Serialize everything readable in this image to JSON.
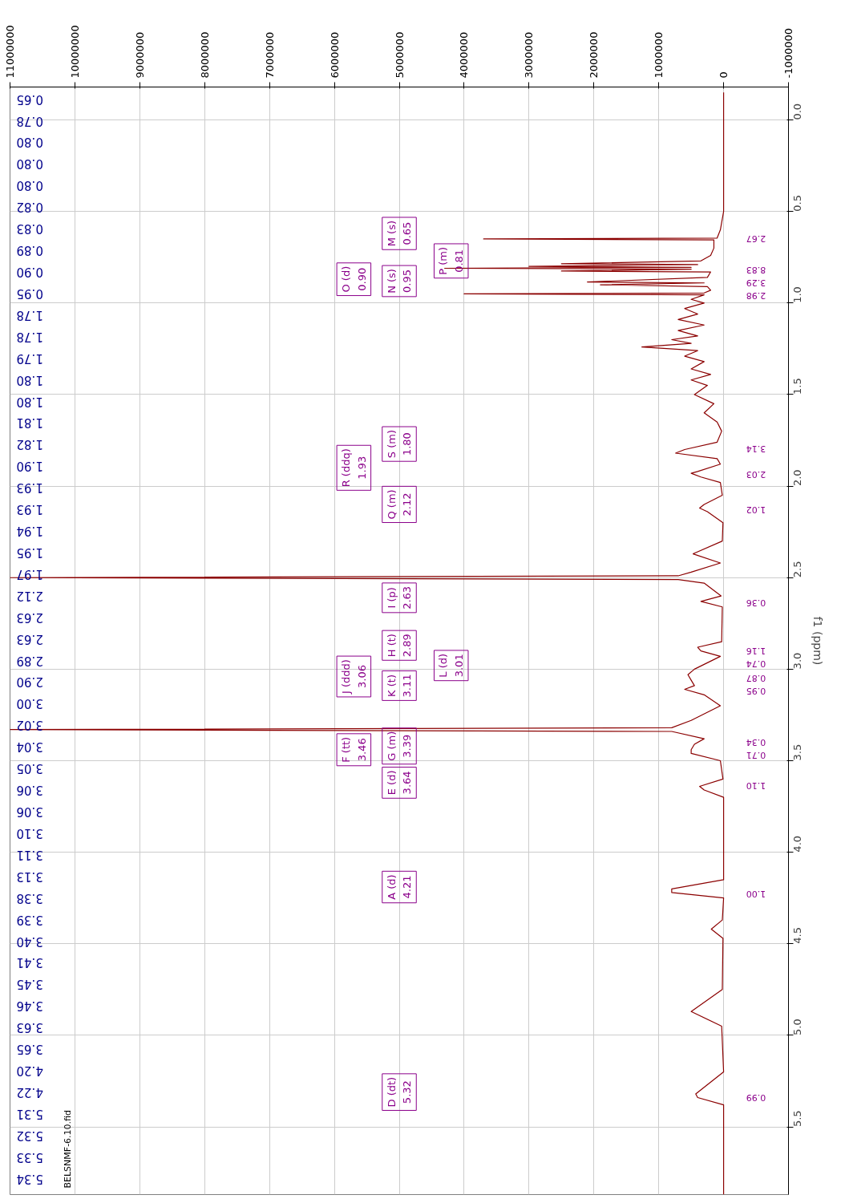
{
  "chart_data": {
    "type": "line",
    "orientation": "horizontal",
    "ylabel": "f1 (ppm)",
    "color": "#8b0000",
    "grid": true,
    "xlim": [
      11000000,
      -1000000
    ],
    "xticks": [
      11000000,
      10000000,
      9000000,
      8000000,
      7000000,
      6000000,
      5000000,
      4000000,
      3000000,
      2000000,
      1000000,
      0,
      -1000000
    ],
    "ylim": [
      5.87,
      -0.18
    ],
    "yticks": [
      {
        "value": 0,
        "label": "0.0"
      },
      {
        "value": 0.5,
        "label": "0.5"
      },
      {
        "value": 1,
        "label": "1.0"
      },
      {
        "value": 1.5,
        "label": "1.5"
      },
      {
        "value": 2,
        "label": "2.0"
      },
      {
        "value": 2.5,
        "label": "2.5"
      },
      {
        "value": 3,
        "label": "3.0"
      },
      {
        "value": 3.5,
        "label": "3.5"
      },
      {
        "value": 4,
        "label": "4.0"
      },
      {
        "value": 4.5,
        "label": "4.5"
      },
      {
        "value": 5,
        "label": "5.0"
      },
      {
        "value": 5.5,
        "label": "5.5"
      }
    ],
    "x": [
      -0.15,
      0.5,
      0.6,
      0.645,
      0.65,
      0.655,
      0.7,
      0.74,
      0.77,
      0.785,
      0.79,
      0.8,
      0.805,
      0.81,
      0.815,
      0.825,
      0.83,
      0.86,
      0.885,
      0.89,
      0.9,
      0.91,
      0.93,
      0.945,
      0.95,
      0.955,
      0.98,
      1.0,
      1.03,
      1.06,
      1.09,
      1.12,
      1.15,
      1.18,
      1.2,
      1.22,
      1.24,
      1.26,
      1.29,
      1.32,
      1.36,
      1.39,
      1.42,
      1.45,
      1.5,
      1.55,
      1.6,
      1.65,
      1.7,
      1.76,
      1.8,
      1.82,
      1.85,
      1.88,
      1.92,
      1.93,
      1.95,
      1.98,
      2.05,
      2.1,
      2.12,
      2.14,
      2.2,
      2.3,
      2.37,
      2.42,
      2.47,
      2.49,
      2.5,
      2.51,
      2.53,
      2.6,
      2.63,
      2.66,
      2.85,
      2.88,
      2.9,
      2.93,
      3.0,
      3.03,
      3.06,
      3.09,
      3.11,
      3.14,
      3.2,
      3.28,
      3.32,
      3.33,
      3.34,
      3.38,
      3.41,
      3.44,
      3.46,
      3.5,
      3.6,
      3.64,
      3.66,
      3.7,
      4.15,
      4.2,
      4.22,
      4.25,
      4.37,
      4.42,
      4.47,
      4.75,
      4.87,
      4.95,
      5.2,
      5.32,
      5.34,
      5.38,
      5.87
    ],
    "values": [
      0,
      0,
      50000,
      100000,
      3700000,
      150000,
      150000,
      200000,
      350000,
      2500000,
      400000,
      3000000,
      500000,
      4300000,
      500000,
      2500000,
      200000,
      250000,
      2100000,
      300000,
      1900000,
      250000,
      200000,
      300000,
      4000000,
      300000,
      500000,
      300000,
      600000,
      400000,
      700000,
      300000,
      700000,
      400000,
      800000,
      500000,
      1260000,
      400000,
      600000,
      300000,
      500000,
      200000,
      500000,
      250000,
      450000,
      150000,
      300000,
      100000,
      30000,
      100000,
      600000,
      740000,
      100000,
      50000,
      400000,
      500000,
      350000,
      50000,
      20000,
      300000,
      370000,
      250000,
      10000,
      20000,
      470000,
      50000,
      500000,
      700000,
      11000000,
      700000,
      300000,
      40000,
      350000,
      20000,
      30000,
      400000,
      350000,
      50000,
      450000,
      550000,
      500000,
      450000,
      600000,
      300000,
      50000,
      500000,
      800000,
      11000000,
      800000,
      300000,
      450000,
      500000,
      500000,
      50000,
      10000,
      370000,
      300000,
      0,
      0,
      800000,
      800000,
      0,
      20000,
      190000,
      10000,
      20000,
      500000,
      30000,
      0,
      430000,
      400000,
      0,
      0
    ],
    "annotations": [
      "M (s)\n0.65",
      "P (m)\n0.81",
      "O (d)\n0.90",
      "N (s)\n0.95",
      "S (m)\n1.80",
      "R (ddq)\n1.93",
      "Q (m)\n2.12",
      "I (p)\n2.63",
      "H (t)\n2.89",
      "L (d)\n3.01",
      "J (ddd)\n3.06",
      "K (t)\n3.11",
      "F (tt)\n3.46",
      "G (m)\n3.39",
      "E (d)\n3.64",
      "A (d)\n4.21",
      "D (dt)\n5.32",
      "2.67",
      "8.83",
      "3.29",
      "2.98",
      "3.14",
      "2.03",
      "1.02",
      "0.36",
      "1.16",
      "0.74",
      "0.87",
      "0.95",
      "0.34",
      "0.71",
      "1.10",
      "1.00",
      "0.99",
      "0.65",
      "0.78",
      "0.80",
      "0.80",
      "0.80",
      "0.82",
      "0.83",
      "0.89",
      "0.90",
      "0.95",
      "1.78",
      "1.78",
      "1.79",
      "1.80",
      "1.80",
      "1.81",
      "1.82",
      "1.90",
      "1.93",
      "1.93",
      "1.94",
      "1.95",
      "1.97",
      "2.12",
      "2.63",
      "2.63",
      "2.89",
      "2.90",
      "3.00",
      "3.02",
      "3.04",
      "3.05",
      "3.06",
      "3.06",
      "3.10",
      "3.11",
      "3.13",
      "3.38",
      "3.39",
      "3.40",
      "3.41",
      "3.45",
      "3.46",
      "3.63",
      "3.65",
      "4.20",
      "4.22",
      "5.31",
      "5.32",
      "5.33",
      "5.34",
      "BELSNMF-6.10.fid"
    ]
  }
}
